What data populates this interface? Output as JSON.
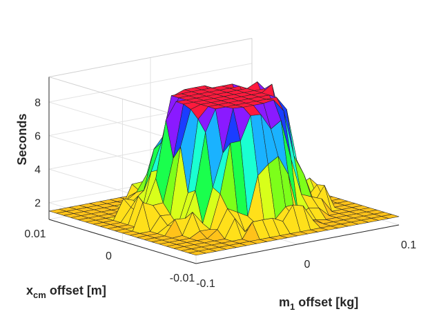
{
  "chart_data": {
    "type": "surface",
    "title": "",
    "zlabel": "Seconds",
    "xlabel_main": "m",
    "xlabel_sub": "1",
    "xlabel_rest": " offset [kg]",
    "ylabel_main": "x",
    "ylabel_sub": "cm",
    "ylabel_rest": " offset [m]",
    "x_ticks": [
      "-0.1",
      "0",
      "0.1"
    ],
    "y_ticks": [
      "-0.01",
      "0",
      "0.01"
    ],
    "z_ticks": [
      "2",
      "4",
      "6",
      "8"
    ],
    "xlim": [
      -0.1,
      0.1
    ],
    "ylim": [
      -0.01,
      0.01
    ],
    "zlim": [
      1,
      9.5
    ],
    "grid": true,
    "colormap": "hsv",
    "surface": {
      "x_range": [
        -0.1,
        0.1
      ],
      "y_range": [
        -0.01,
        0.01
      ],
      "grid_size": 21,
      "baseline_seconds": 1.5,
      "plateau_seconds": 8.5,
      "plateau_center": [
        0.0,
        0.0
      ],
      "plateau_radius_x": 0.05,
      "plateau_radius_y": 0.0055
    }
  }
}
